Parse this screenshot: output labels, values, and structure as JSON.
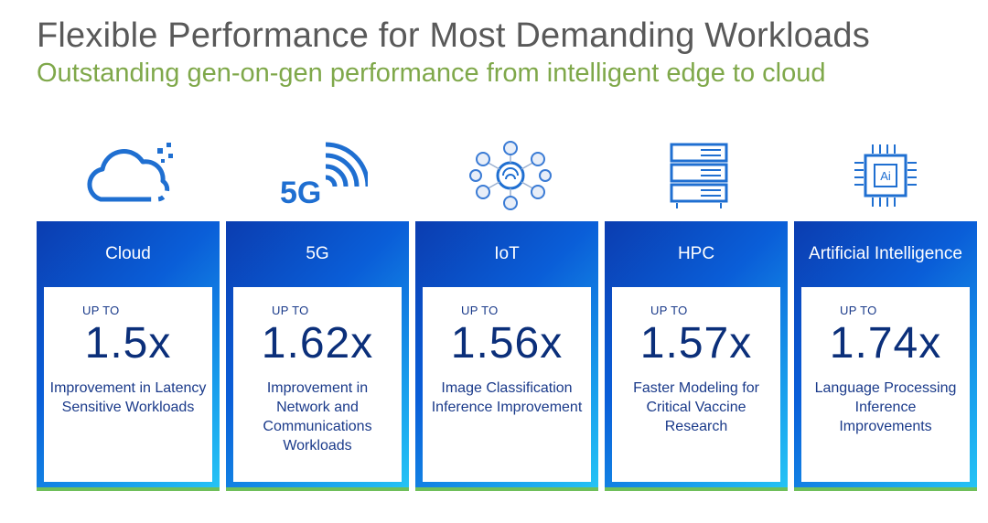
{
  "title": "Flexible Performance for Most Demanding Workloads",
  "subtitle": "Outstanding gen-on-gen performance from intelligent edge to cloud",
  "colors": {
    "title": "#595959",
    "subtitle": "#7fa84a",
    "card_dark": "#0b3db0",
    "card_light": "#25c3f5",
    "value": "#0b2f7a"
  },
  "cards": [
    {
      "icon": "cloud-icon",
      "label": "Cloud",
      "upto": "UP TO",
      "value": "1.5x",
      "desc": "Improvement in Latency Sensitive Workloads"
    },
    {
      "icon": "5g-signal-icon",
      "icon_text": "5G",
      "label": "5G",
      "upto": "UP TO",
      "value": "1.62x",
      "desc": "Improvement in Network and Communications Workloads"
    },
    {
      "icon": "iot-network-icon",
      "label": "IoT",
      "upto": "UP TO",
      "value": "1.56x",
      "desc": "Image Classification Inference Improvement"
    },
    {
      "icon": "server-rack-icon",
      "label": "HPC",
      "upto": "UP TO",
      "value": "1.57x",
      "desc": "Faster Modeling for Critical Vaccine Research"
    },
    {
      "icon": "ai-chip-icon",
      "icon_text": "Ai",
      "label": "Artificial Intelligence",
      "upto": "UP TO",
      "value": "1.74x",
      "desc": "Language Processing Inference Improvements"
    }
  ]
}
